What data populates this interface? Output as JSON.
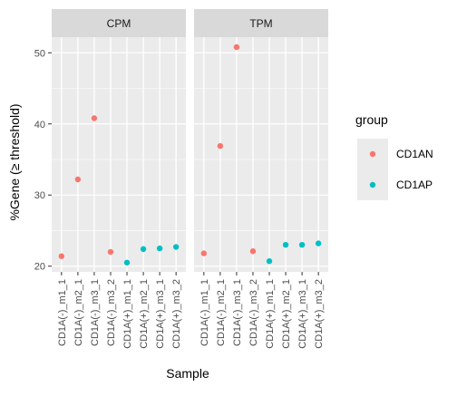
{
  "chart_data": {
    "type": "scatter",
    "title": "",
    "xlabel": "Sample",
    "ylabel": "%Gene (≥ threshold)",
    "ylim": [
      19.2,
      52.2
    ],
    "y_ticks": [
      20,
      30,
      40,
      50
    ],
    "grid": true,
    "categories": [
      "CD1A(-)_m1_1",
      "CD1A(-)_m2_1",
      "CD1A(-)_m3_1",
      "CD1A(-)_m3_2",
      "CD1A(+)_m1_1",
      "CD1A(+)_m2_1",
      "CD1A(+)_m3_1",
      "CD1A(+)_m3_2"
    ],
    "groups": [
      "CD1AN",
      "CD1AN",
      "CD1AN",
      "CD1AN",
      "CD1AP",
      "CD1AP",
      "CD1AP",
      "CD1AP"
    ],
    "panels": [
      {
        "label": "CPM",
        "values": [
          21.4,
          32.2,
          40.8,
          22.0,
          20.5,
          22.4,
          22.5,
          22.7
        ]
      },
      {
        "label": "TPM",
        "values": [
          21.8,
          36.9,
          50.8,
          22.1,
          20.7,
          23.0,
          23.0,
          23.2
        ]
      }
    ],
    "legend": {
      "title": "group",
      "position": "right",
      "items": [
        {
          "name": "CD1AN",
          "color": "#F8766D"
        },
        {
          "name": "CD1AP",
          "color": "#00BFC4"
        }
      ]
    }
  }
}
